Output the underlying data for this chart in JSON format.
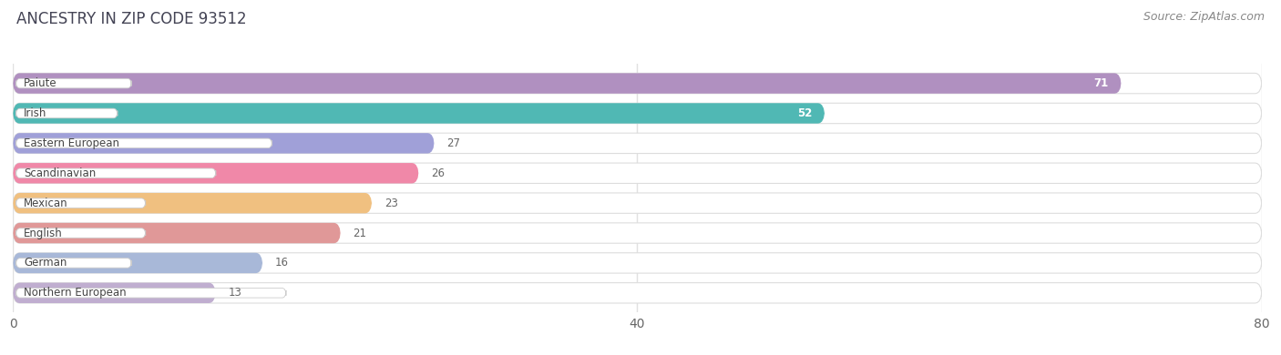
{
  "title": "ANCESTRY IN ZIP CODE 93512",
  "source": "Source: ZipAtlas.com",
  "categories": [
    "Paiute",
    "Irish",
    "Eastern European",
    "Scandinavian",
    "Mexican",
    "English",
    "German",
    "Northern European"
  ],
  "values": [
    71,
    52,
    27,
    26,
    23,
    21,
    16,
    13
  ],
  "bar_colors": [
    "#b090c0",
    "#50b8b4",
    "#a0a0d8",
    "#f088a8",
    "#f0c080",
    "#e09898",
    "#a8b8d8",
    "#c0aed0"
  ],
  "bar_bg_colors": [
    "#f0eaf5",
    "#e0f4f3",
    "#eaeaf8",
    "#fce8f0",
    "#fdf3e0",
    "#f8eded",
    "#e8eef8",
    "#ede8f5"
  ],
  "xlim": [
    0,
    80
  ],
  "xticks": [
    0,
    40,
    80
  ],
  "value_label_inside": [
    true,
    true,
    false,
    false,
    false,
    false,
    false,
    false
  ],
  "background_color": "#ffffff",
  "title_fontsize": 12,
  "source_fontsize": 9,
  "tick_fontsize": 10
}
